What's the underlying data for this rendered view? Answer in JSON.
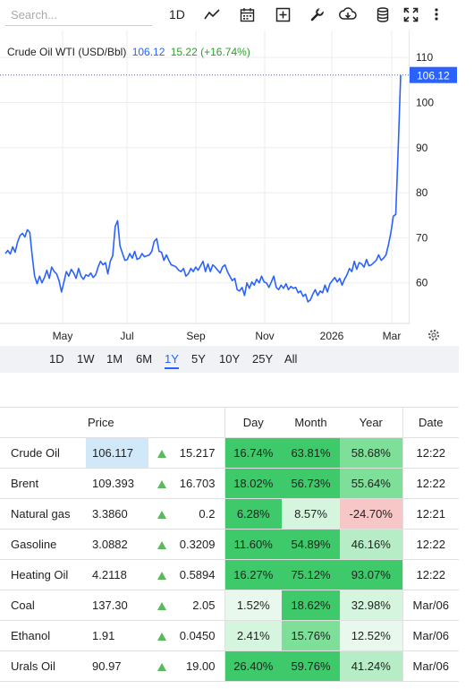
{
  "toolbar": {
    "search_placeholder": "Search...",
    "interval_label": "1D",
    "icons": [
      "line-chart-icon",
      "calendar-icon",
      "plus-box-icon",
      "wrench-icon",
      "cloud-download-icon",
      "database-icon",
      "fullscreen-icon",
      "more-vertical-icon"
    ]
  },
  "chart": {
    "name": "Crude Oil WTI (USD/Bbl)",
    "last": "106.12",
    "change": "15.22 (+16.74%)",
    "last_marker": "106.12",
    "line_color": "#2962ff",
    "settings_icon": "gear-icon"
  },
  "chart_data": {
    "type": "line",
    "title": "Crude Oil WTI (USD/Bbl)",
    "x_tick_labels": [
      "May",
      "Jul",
      "Sep",
      "Nov",
      "2026",
      "Mar"
    ],
    "y_tick_labels": [
      "110",
      "100",
      "90",
      "80",
      "70",
      "60"
    ],
    "ylim": [
      51,
      116
    ],
    "grid": true,
    "series": [
      {
        "values": [
          66.5,
          67.2,
          66.4,
          68.0,
          66.8,
          69.0,
          70.5,
          71.0,
          70.2,
          71.8,
          71.2,
          66.0,
          61.5,
          59.8,
          61.5,
          60.0,
          61.2,
          62.8,
          61.0,
          63.5,
          62.5,
          62.0,
          60.5,
          58.0,
          60.2,
          62.5,
          61.5,
          63.0,
          62.2,
          61.0,
          63.2,
          61.5,
          60.8,
          61.8,
          61.5,
          62.2,
          61.2,
          61.8,
          63.5,
          64.8,
          64.0,
          64.5,
          62.0,
          64.8,
          66.0,
          72.5,
          73.8,
          68.2,
          66.5,
          65.0,
          65.2,
          66.5,
          65.5,
          67.0,
          65.2,
          65.5,
          66.5,
          65.8,
          66.0,
          66.2,
          67.0,
          69.2,
          69.8,
          67.0,
          66.8,
          65.0,
          66.2,
          65.0,
          64.0,
          63.8,
          63.5,
          62.8,
          62.5,
          63.2,
          61.5,
          62.0,
          63.2,
          62.5,
          63.5,
          62.8,
          63.8,
          64.8,
          62.5,
          64.2,
          62.5,
          64.0,
          63.5,
          62.8,
          62.2,
          63.5,
          64.0,
          62.5,
          61.5,
          60.5,
          61.0,
          58.5,
          58.2,
          59.0,
          57.2,
          60.0,
          58.8,
          60.2,
          59.5,
          60.8,
          60.0,
          61.5,
          60.2,
          60.0,
          59.0,
          60.2,
          61.5,
          59.0,
          58.5,
          59.5,
          58.8,
          59.8,
          58.5,
          59.2,
          58.8,
          59.0,
          57.8,
          58.2,
          57.0,
          57.5,
          55.8,
          56.2,
          57.5,
          58.5,
          57.2,
          58.2,
          57.8,
          59.5,
          58.0,
          59.8,
          60.5,
          61.2,
          60.2,
          61.0,
          59.5,
          60.8,
          61.8,
          63.2,
          62.5,
          64.8,
          63.0,
          64.5,
          64.2,
          63.5,
          65.2,
          63.8,
          64.0,
          64.5,
          65.0,
          66.2,
          65.0,
          65.5,
          66.2,
          68.5,
          71.2,
          74.8,
          75.2,
          90.0,
          106.12
        ]
      }
    ]
  },
  "periods": [
    "1D",
    "1W",
    "1M",
    "6M",
    "1Y",
    "5Y",
    "10Y",
    "25Y",
    "All"
  ],
  "active_period": "1Y",
  "table": {
    "headers": {
      "price": "Price",
      "day": "Day",
      "month": "Month",
      "year": "Year",
      "date": "Date"
    },
    "rows": [
      {
        "name": "Crude Oil",
        "price": "106.117",
        "change": "15.217",
        "day": "16.74%",
        "month": "63.81%",
        "year": "58.68%",
        "date": "12:22"
      },
      {
        "name": "Brent",
        "price": "109.393",
        "change": "16.703",
        "day": "18.02%",
        "month": "56.73%",
        "year": "55.64%",
        "date": "12:22"
      },
      {
        "name": "Natural gas",
        "price": "3.3860",
        "change": "0.2",
        "day": "6.28%",
        "month": "8.57%",
        "year": "-24.70%",
        "date": "12:21"
      },
      {
        "name": "Gasoline",
        "price": "3.0882",
        "change": "0.3209",
        "day": "11.60%",
        "month": "54.89%",
        "year": "46.16%",
        "date": "12:22"
      },
      {
        "name": "Heating Oil",
        "price": "4.2118",
        "change": "0.5894",
        "day": "16.27%",
        "month": "75.12%",
        "year": "93.07%",
        "date": "12:22"
      },
      {
        "name": "Coal",
        "price": "137.30",
        "change": "2.05",
        "day": "1.52%",
        "month": "18.62%",
        "year": "32.98%",
        "date": "Mar/06"
      },
      {
        "name": "Ethanol",
        "price": "1.91",
        "change": "0.0450",
        "day": "2.41%",
        "month": "15.76%",
        "year": "12.52%",
        "date": "Mar/06"
      },
      {
        "name": "Urals Oil",
        "price": "90.97",
        "change": "19.00",
        "day": "26.40%",
        "month": "59.76%",
        "year": "41.24%",
        "date": "Mar/06"
      }
    ],
    "highlighted_price_row": 0,
    "colors": {
      "strong_green": "#3ec96a",
      "mid_green": "#7ddf98",
      "light_green": "#b6edc6",
      "pale_green": "#d6f5de",
      "faint_green": "#e8f8ec",
      "light_red": "#f7c6c6",
      "price_highlight": "#d1e8f9"
    }
  }
}
